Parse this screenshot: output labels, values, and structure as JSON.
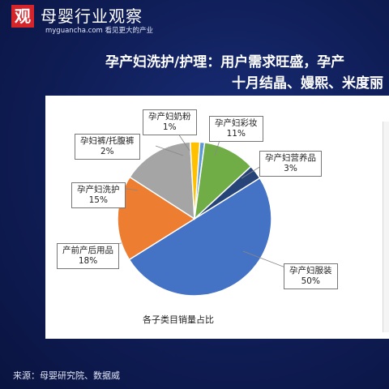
{
  "header": {
    "logo_glyph": "观",
    "brand": "母婴行业观察",
    "brand_sub": "myguancha.com 看见更大的产业",
    "headline_line1": "孕产妇洗护/护理：用户需求旺盛，孕产",
    "headline_line2": "十月结晶、嫚熙、米度丽"
  },
  "source": "来源：母婴研究院、数据威",
  "chart_data": {
    "type": "pie",
    "title": "各子类目销量占比",
    "slices": [
      {
        "name": "孕产妇服装",
        "value": 50,
        "label": "50%",
        "color": "#4472c4"
      },
      {
        "name": "产前产后用品",
        "value": 18,
        "label": "18%",
        "color": "#ed7d31"
      },
      {
        "name": "孕产妇洗护",
        "value": 15,
        "label": "15%",
        "color": "#a5a5a5"
      },
      {
        "name": "孕妇裤/托腹裤",
        "value": 2,
        "label": "2%",
        "color": "#ffc000"
      },
      {
        "name": "孕产妇奶粉",
        "value": 1,
        "label": "1%",
        "color": "#5b9bd5"
      },
      {
        "name": "孕产妇彩妆",
        "value": 11,
        "label": "11%",
        "color": "#70ad47"
      },
      {
        "name": "孕产妇营养品",
        "value": 3,
        "label": "3%",
        "color": "#264478"
      }
    ]
  }
}
